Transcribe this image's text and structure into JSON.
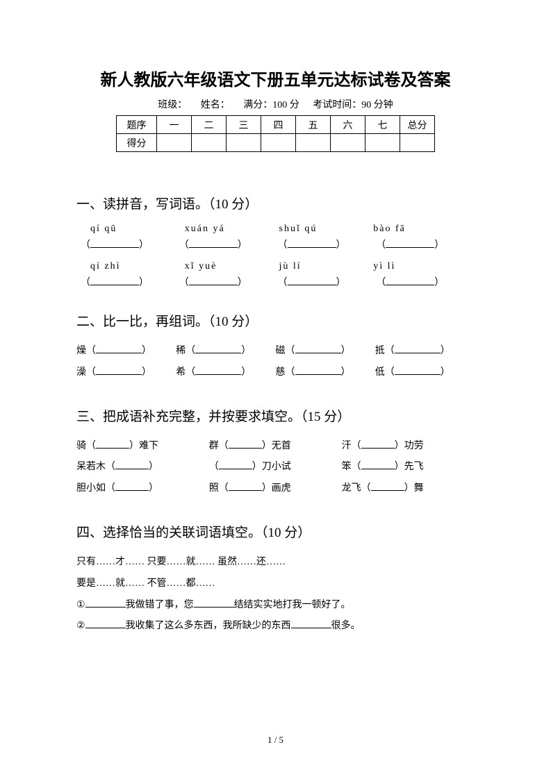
{
  "title": "新人教版六年级语文下册五单元达标试卷及答案",
  "meta": {
    "class_label": "班级：",
    "name_label": "姓名：",
    "full_score": "满分：100 分",
    "duration": "考试时间：90 分钟"
  },
  "score_table": {
    "header_label": "题序",
    "score_label": "得分",
    "cols": [
      "一",
      "二",
      "三",
      "四",
      "五",
      "六",
      "七",
      "总分"
    ]
  },
  "sections": {
    "s1": {
      "title": "一、读拼音，写词语。（10 分）",
      "pinyin_rows": [
        [
          "qí   qū",
          "xuán   yá",
          "shuǐ   qú",
          "bào   fā"
        ],
        [
          "qí   zhì",
          "xǐ   yuè",
          "jù   lí",
          "yì   lì"
        ]
      ]
    },
    "s2": {
      "title": "二、比一比，再组词。（10 分）",
      "rows": [
        [
          "燥",
          "稀",
          "磁",
          "抵"
        ],
        [
          "澡",
          "希",
          "慈",
          "低"
        ]
      ]
    },
    "s3": {
      "title": "三、把成语补充完整，并按要求填空。（15 分）",
      "rows": [
        [
          {
            "pre": "骑（",
            "suf": "）难下"
          },
          {
            "pre": "群（",
            "suf": "）无首"
          },
          {
            "pre": "汗（",
            "suf": "）功劳"
          }
        ],
        [
          {
            "pre": "呆若木（",
            "suf": "）"
          },
          {
            "pre": "（",
            "suf": "）刀小试"
          },
          {
            "pre": "笨（",
            "suf": "）先飞"
          }
        ],
        [
          {
            "pre": "胆小如（",
            "suf": "）"
          },
          {
            "pre": "照（",
            "suf": "）画虎"
          },
          {
            "pre": "龙飞（",
            "suf": "）舞"
          }
        ]
      ]
    },
    "s4": {
      "title": "四、选择恰当的关联词语填空。（10 分）",
      "options_line1": "只有……才……    只要……就……    虽然……还……",
      "options_line2": "要是……就……    不管……都……",
      "q1_a": "①",
      "q1_b": "我做错了事，您",
      "q1_c": "结结实实地打我一顿好了。",
      "q2_a": "②",
      "q2_b": "我收集了这么多东西，我所缺少的东西",
      "q2_c": "很多。"
    }
  },
  "page_number": "1 / 5",
  "colors": {
    "text": "#000000",
    "bg": "#ffffff"
  }
}
